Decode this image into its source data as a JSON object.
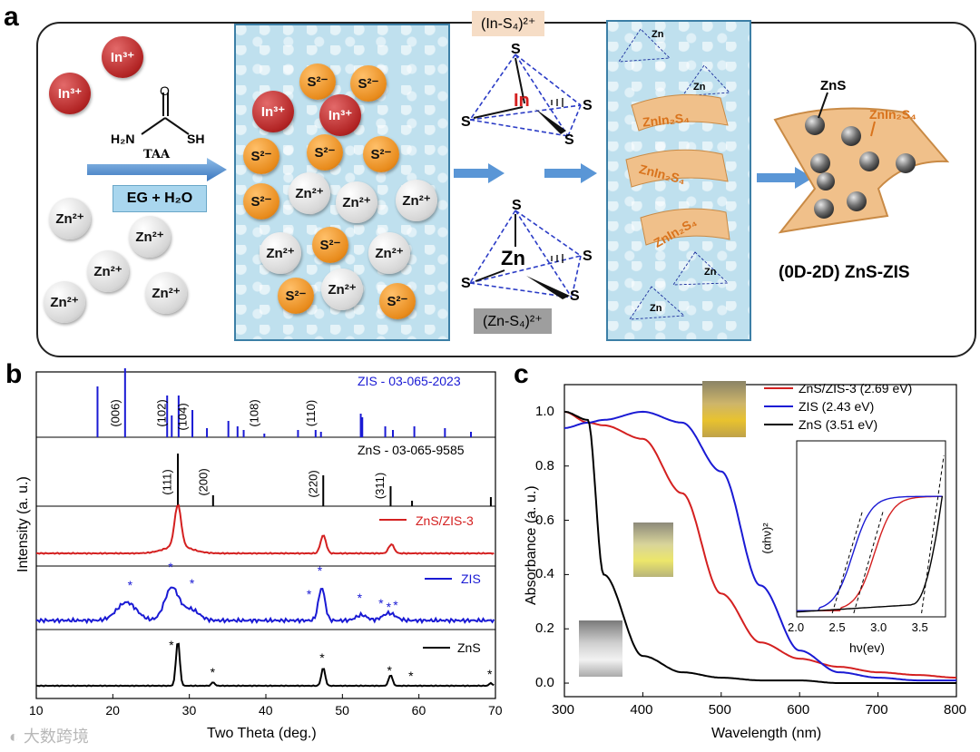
{
  "panel_a": {
    "label": "a",
    "taa": {
      "formula_left": "H₂N",
      "formula_right": "SH",
      "o": "O",
      "name": "TAA"
    },
    "solvent": "EG + H₂O",
    "ions_left": {
      "in": "In³⁺",
      "zn": "Zn²⁺"
    },
    "ions_mix": {
      "in": "In³⁺",
      "s": "S²⁻",
      "zn": "Zn²⁺"
    },
    "in_complex": {
      "title": "(In-S₄)²⁺",
      "center": "In",
      "ligand": "S"
    },
    "zn_complex": {
      "title": "(Zn-S₄)²⁺",
      "center": "Zn",
      "ligand": "S"
    },
    "sheet_label": "ZnIn₂S₄",
    "product": {
      "zns": "ZnS",
      "znin": "ZnIn₂S₄",
      "title": "(0D-2D) ZnS-ZIS"
    },
    "colors": {
      "in": "#b22424",
      "s": "#e88b1c",
      "zn": "#d0d0d0",
      "arrow": "#4a8bd0",
      "sheet": "#f0c08a",
      "orange_text": "#d9731c"
    }
  },
  "panel_b": {
    "label": "b",
    "ylabel": "Intensity (a. u.)",
    "xlabel": "Two Theta (deg.)",
    "xticks": [
      "10",
      "20",
      "30",
      "40",
      "50",
      "60",
      "70"
    ],
    "zis_ref": "ZIS - 03-065-2023",
    "zns_ref": "ZnS - 03-065-9585",
    "zis_peaks": [
      "(006)",
      "(102)",
      "(104)",
      "(108)",
      "(110)"
    ],
    "zns_peaks": [
      "(111)",
      "(200)",
      "(220)",
      "(311)"
    ],
    "legend": {
      "composite": "ZnS/ZIS-3",
      "zis": "ZIS",
      "zns": "ZnS"
    },
    "colors": {
      "composite": "#d42020",
      "zis": "#1a1ad4",
      "zns": "#000000"
    }
  },
  "panel_c": {
    "label": "c",
    "ylabel": "Absorbance (a. u.)",
    "xlabel": "Wavelength (nm)",
    "yticks": [
      "0.0",
      "0.2",
      "0.4",
      "0.6",
      "0.8",
      "1.0"
    ],
    "xticks": [
      "300",
      "400",
      "500",
      "600",
      "700",
      "800"
    ],
    "legend": [
      "ZnS/ZIS-3 (2.69 eV)",
      "ZIS (2.43 eV)",
      "ZnS (3.51 eV)"
    ],
    "inset": {
      "ylabel": "(αhν)²",
      "xlabel": "hν(ev)",
      "xticks": [
        "2.0",
        "2.5",
        "3.0",
        "3.5"
      ]
    },
    "colors": {
      "composite": "#d42020",
      "zis": "#1a1ad4",
      "zns": "#000000"
    }
  },
  "watermark": "大数跨境",
  "chart_data": [
    {
      "type": "line",
      "title": "",
      "xlabel": "Two Theta (deg.)",
      "ylabel": "Intensity (a. u.)",
      "xlim": [
        10,
        70
      ],
      "series": [
        {
          "name": "ZIS - 03-065-2023 reference",
          "x": [
            21.6,
            27.7,
            30.4,
            39.8,
            47.2
          ]
        },
        {
          "name": "ZnS - 03-065-9585 reference",
          "x": [
            28.5,
            33.1,
            47.5,
            56.3
          ]
        },
        {
          "name": "ZnS/ZIS-3",
          "x": [
            28.5,
            47.5,
            56.4
          ]
        },
        {
          "name": "ZIS",
          "x": [
            21.6,
            27.7,
            30.4,
            47.2,
            52.5,
            55.6,
            56.6
          ]
        },
        {
          "name": "ZnS",
          "x": [
            28.5,
            33.1,
            47.5,
            56.3,
            59.1,
            69.4
          ]
        }
      ]
    },
    {
      "type": "line",
      "title": "",
      "xlabel": "Wavelength (nm)",
      "ylabel": "Absorbance (a. u.)",
      "xlim": [
        300,
        800
      ],
      "ylim": [
        -0.05,
        1.1
      ],
      "x": [
        300,
        330,
        350,
        400,
        450,
        500,
        550,
        600,
        650,
        700,
        750,
        800
      ],
      "series": [
        {
          "name": "ZnS/ZIS-3 (2.69 eV)",
          "values": [
            1.0,
            0.96,
            0.95,
            0.9,
            0.7,
            0.33,
            0.15,
            0.09,
            0.06,
            0.04,
            0.03,
            0.02
          ]
        },
        {
          "name": "ZIS (2.43 eV)",
          "values": [
            0.94,
            0.96,
            0.97,
            1.0,
            0.96,
            0.78,
            0.36,
            0.12,
            0.04,
            0.02,
            0.01,
            0.01
          ]
        },
        {
          "name": "ZnS (3.51 eV)",
          "values": [
            1.0,
            0.97,
            0.4,
            0.1,
            0.04,
            0.02,
            0.01,
            0.01,
            0.0,
            0.0,
            0.0,
            0.0
          ]
        }
      ]
    }
  ]
}
